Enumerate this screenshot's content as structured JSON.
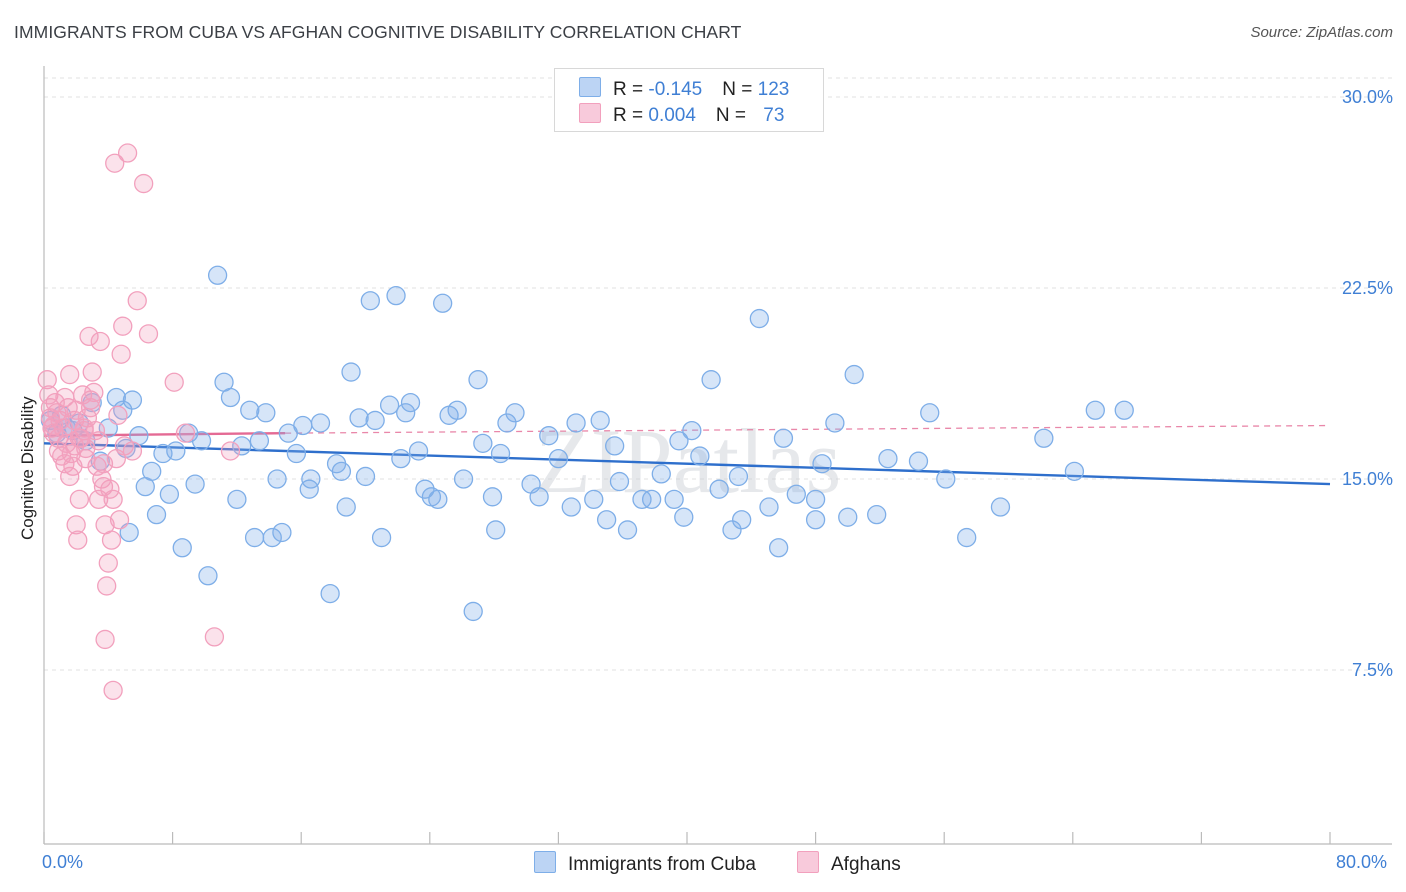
{
  "title": "IMMIGRANTS FROM CUBA VS AFGHAN COGNITIVE DISABILITY CORRELATION CHART",
  "source": "Source: ZipAtlas.com",
  "watermark": "ZIPatlas",
  "legend_top": {
    "rows": [
      {
        "r_label": "R = ",
        "r_value": "-0.145",
        "n_label": "N = ",
        "n_value": "123",
        "color": "#7eaee8"
      },
      {
        "r_label": "R = ",
        "r_value": "0.004",
        "n_label": "N = ",
        "n_value": "73",
        "color": "#f2a0bd"
      }
    ]
  },
  "chart_data": {
    "type": "scatter",
    "title": "IMMIGRANTS FROM CUBA VS AFGHAN COGNITIVE DISABILITY CORRELATION CHART",
    "xlabel": "",
    "ylabel": "Cognitive Disability",
    "xlim": [
      0,
      80
    ],
    "ylim": [
      0,
      31
    ],
    "x_tick_labels": [
      "0.0%",
      "80.0%"
    ],
    "y_ticks": [
      7.5,
      15.0,
      22.5,
      30.0
    ],
    "y_tick_labels": [
      "7.5%",
      "15.0%",
      "22.5%",
      "30.0%"
    ],
    "grid": true,
    "legend_position": "bottom-center",
    "series": [
      {
        "name": "Immigrants from Cuba",
        "color": "#7eaee8",
        "trend": {
          "x": [
            0,
            80
          ],
          "y": [
            16.4,
            14.8
          ],
          "color": "#2e6fcc"
        },
        "points": [
          [
            0.4,
            17.3
          ],
          [
            0.8,
            16.8
          ],
          [
            1.1,
            17.5
          ],
          [
            1.4,
            17.0
          ],
          [
            1.8,
            16.9
          ],
          [
            2.2,
            17.2
          ],
          [
            2.6,
            16.5
          ],
          [
            3.0,
            18.0
          ],
          [
            3.5,
            15.7
          ],
          [
            4.0,
            17.0
          ],
          [
            4.5,
            18.2
          ],
          [
            4.9,
            17.7
          ],
          [
            5.1,
            16.2
          ],
          [
            5.5,
            18.1
          ],
          [
            5.9,
            16.7
          ],
          [
            6.3,
            14.7
          ],
          [
            6.7,
            15.3
          ],
          [
            7.0,
            13.6
          ],
          [
            7.4,
            16.0
          ],
          [
            7.8,
            14.4
          ],
          [
            8.2,
            16.1
          ],
          [
            8.6,
            12.3
          ],
          [
            9.0,
            16.8
          ],
          [
            9.4,
            14.8
          ],
          [
            9.8,
            16.5
          ],
          [
            10.2,
            11.2
          ],
          [
            10.8,
            23.0
          ],
          [
            11.2,
            18.8
          ],
          [
            11.6,
            18.2
          ],
          [
            12.0,
            14.2
          ],
          [
            12.3,
            16.3
          ],
          [
            12.8,
            17.7
          ],
          [
            13.1,
            12.7
          ],
          [
            13.4,
            16.5
          ],
          [
            13.8,
            17.6
          ],
          [
            14.2,
            12.7
          ],
          [
            14.5,
            15.0
          ],
          [
            14.8,
            12.9
          ],
          [
            15.2,
            16.8
          ],
          [
            15.7,
            16.0
          ],
          [
            16.1,
            17.1
          ],
          [
            16.5,
            14.6
          ],
          [
            16.6,
            15.0
          ],
          [
            17.2,
            17.2
          ],
          [
            17.8,
            10.5
          ],
          [
            18.2,
            15.6
          ],
          [
            18.5,
            15.3
          ],
          [
            18.8,
            13.9
          ],
          [
            19.1,
            19.2
          ],
          [
            19.6,
            17.4
          ],
          [
            20.0,
            15.1
          ],
          [
            20.3,
            22.0
          ],
          [
            20.6,
            17.3
          ],
          [
            21.0,
            12.7
          ],
          [
            21.5,
            17.9
          ],
          [
            21.9,
            22.2
          ],
          [
            22.2,
            15.8
          ],
          [
            22.5,
            17.6
          ],
          [
            22.8,
            18.0
          ],
          [
            23.3,
            16.1
          ],
          [
            23.7,
            14.6
          ],
          [
            24.1,
            14.3
          ],
          [
            24.5,
            14.2
          ],
          [
            24.8,
            21.9
          ],
          [
            25.2,
            17.5
          ],
          [
            25.7,
            17.7
          ],
          [
            26.1,
            15.0
          ],
          [
            26.7,
            9.8
          ],
          [
            27.0,
            18.9
          ],
          [
            27.3,
            16.4
          ],
          [
            27.9,
            14.3
          ],
          [
            28.1,
            13.0
          ],
          [
            28.4,
            16.0
          ],
          [
            28.8,
            17.2
          ],
          [
            29.3,
            17.6
          ],
          [
            30.3,
            14.8
          ],
          [
            30.8,
            14.3
          ],
          [
            31.4,
            16.7
          ],
          [
            32.0,
            15.8
          ],
          [
            32.8,
            13.9
          ],
          [
            33.1,
            17.2
          ],
          [
            34.2,
            14.2
          ],
          [
            34.6,
            17.3
          ],
          [
            35.0,
            13.4
          ],
          [
            35.5,
            16.3
          ],
          [
            35.8,
            14.9
          ],
          [
            36.3,
            13.0
          ],
          [
            37.2,
            14.2
          ],
          [
            37.8,
            14.2
          ],
          [
            38.4,
            15.2
          ],
          [
            39.2,
            14.2
          ],
          [
            39.5,
            16.5
          ],
          [
            39.8,
            13.5
          ],
          [
            40.3,
            16.9
          ],
          [
            40.8,
            15.9
          ],
          [
            41.5,
            18.9
          ],
          [
            42.0,
            14.6
          ],
          [
            42.8,
            13.0
          ],
          [
            43.2,
            15.1
          ],
          [
            43.4,
            13.4
          ],
          [
            44.5,
            21.3
          ],
          [
            45.1,
            13.9
          ],
          [
            45.7,
            12.3
          ],
          [
            46.0,
            16.6
          ],
          [
            46.8,
            14.4
          ],
          [
            48.0,
            13.4
          ],
          [
            48.4,
            15.6
          ],
          [
            49.2,
            17.2
          ],
          [
            50.0,
            13.5
          ],
          [
            50.4,
            19.1
          ],
          [
            51.8,
            13.6
          ],
          [
            52.5,
            15.8
          ],
          [
            54.4,
            15.7
          ],
          [
            55.1,
            17.6
          ],
          [
            56.1,
            15.0
          ],
          [
            57.4,
            12.7
          ],
          [
            59.5,
            13.9
          ],
          [
            62.2,
            16.6
          ],
          [
            64.1,
            15.3
          ],
          [
            65.4,
            17.7
          ],
          [
            67.2,
            17.7
          ],
          [
            5.3,
            12.9
          ],
          [
            48.0,
            14.2
          ]
        ]
      },
      {
        "name": "Afghans",
        "color": "#f2a0bd",
        "trend": {
          "x": [
            0,
            15
          ],
          "y": [
            16.7,
            16.8
          ],
          "color": "#e46a94",
          "extended": {
            "x": [
              15,
              80
            ],
            "y": [
              16.8,
              17.1
            ]
          }
        },
        "points": [
          [
            0.2,
            18.9
          ],
          [
            0.3,
            18.3
          ],
          [
            0.4,
            17.4
          ],
          [
            0.5,
            17.0
          ],
          [
            0.6,
            16.8
          ],
          [
            0.7,
            18.0
          ],
          [
            0.8,
            17.6
          ],
          [
            0.9,
            16.1
          ],
          [
            1.0,
            17.3
          ],
          [
            1.1,
            15.9
          ],
          [
            1.2,
            17.0
          ],
          [
            1.3,
            15.6
          ],
          [
            1.4,
            16.4
          ],
          [
            1.5,
            17.8
          ],
          [
            1.6,
            19.1
          ],
          [
            1.7,
            16.0
          ],
          [
            1.8,
            15.5
          ],
          [
            1.9,
            17.3
          ],
          [
            2.0,
            17.7
          ],
          [
            2.0,
            13.2
          ],
          [
            2.1,
            12.6
          ],
          [
            2.2,
            14.2
          ],
          [
            2.3,
            16.6
          ],
          [
            2.4,
            18.3
          ],
          [
            2.5,
            16.9
          ],
          [
            2.6,
            16.2
          ],
          [
            2.7,
            17.4
          ],
          [
            2.8,
            20.6
          ],
          [
            2.9,
            18.1
          ],
          [
            3.0,
            19.2
          ],
          [
            3.1,
            18.4
          ],
          [
            3.2,
            16.9
          ],
          [
            3.3,
            15.5
          ],
          [
            3.4,
            14.2
          ],
          [
            3.5,
            20.4
          ],
          [
            3.6,
            15.0
          ],
          [
            3.7,
            14.7
          ],
          [
            3.8,
            13.2
          ],
          [
            3.9,
            10.8
          ],
          [
            4.0,
            11.7
          ],
          [
            4.1,
            14.6
          ],
          [
            4.2,
            12.6
          ],
          [
            4.3,
            14.2
          ],
          [
            4.4,
            27.4
          ],
          [
            4.5,
            15.8
          ],
          [
            4.6,
            17.5
          ],
          [
            4.7,
            13.4
          ],
          [
            4.8,
            19.9
          ],
          [
            4.9,
            21.0
          ],
          [
            5.0,
            16.3
          ],
          [
            5.2,
            27.8
          ],
          [
            5.5,
            16.1
          ],
          [
            5.8,
            22.0
          ],
          [
            6.2,
            26.6
          ],
          [
            6.5,
            20.7
          ],
          [
            8.1,
            18.8
          ],
          [
            8.8,
            16.8
          ],
          [
            10.6,
            8.8
          ],
          [
            11.6,
            16.1
          ],
          [
            3.8,
            8.7
          ],
          [
            4.3,
            6.7
          ],
          [
            2.5,
            17.0
          ],
          [
            1.6,
            15.1
          ],
          [
            0.9,
            16.6
          ],
          [
            2.2,
            16.6
          ],
          [
            3.4,
            16.5
          ],
          [
            0.6,
            17.1
          ],
          [
            1.3,
            18.2
          ],
          [
            2.9,
            17.8
          ],
          [
            3.7,
            15.6
          ],
          [
            0.4,
            17.8
          ],
          [
            1.9,
            16.3
          ],
          [
            2.6,
            15.8
          ]
        ]
      }
    ]
  },
  "legend_bottom": [
    {
      "label": "Immigrants from Cuba",
      "color": "#7eaee8"
    },
    {
      "label": "Afghans",
      "color": "#f2a0bd"
    }
  ]
}
